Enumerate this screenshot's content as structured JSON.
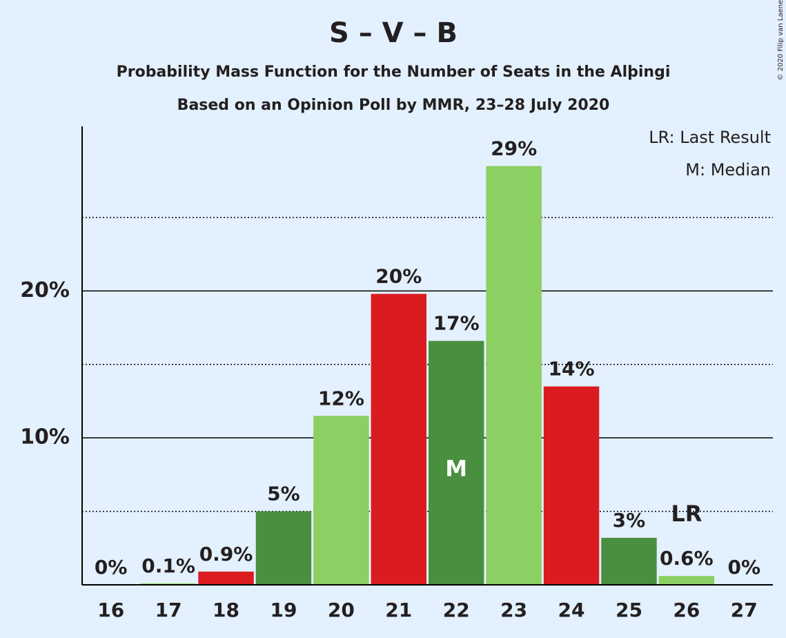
{
  "chart_data": {
    "type": "bar",
    "title": "S – V – B",
    "subtitles": [
      "Probability Mass Function for the Number of Seats in the Alþingi",
      "Based on an Opinion Poll by MMR, 23–28 July 2020"
    ],
    "categories": [
      "16",
      "17",
      "18",
      "19",
      "20",
      "21",
      "22",
      "23",
      "24",
      "25",
      "26",
      "27"
    ],
    "values": [
      0,
      0.1,
      0.9,
      5.0,
      11.5,
      19.8,
      16.6,
      28.5,
      13.5,
      3.2,
      0.6,
      0
    ],
    "value_labels": [
      "0%",
      "0.1%",
      "0.9%",
      "5%",
      "12%",
      "20%",
      "17%",
      "29%",
      "14%",
      "3%",
      "0.6%",
      "0%"
    ],
    "colors": [
      "#4a8f3f",
      "#8ccf63",
      "#da1c21",
      "#4a8f3f",
      "#8ccf63",
      "#da1c21",
      "#4a8f3f",
      "#8ccf63",
      "#da1c21",
      "#4a8f3f",
      "#8ccf63",
      "#da1c21"
    ],
    "ylim": [
      0,
      31.2
    ],
    "yticks": [
      {
        "value": 10,
        "label": "10%"
      },
      {
        "value": 20,
        "label": "20%"
      }
    ],
    "minor_yticks": [
      5,
      15,
      25
    ],
    "grid": true,
    "annotations": [
      {
        "text": "M",
        "category": "22",
        "position": "inside"
      },
      {
        "text": "LR",
        "category": "26",
        "position": "above"
      }
    ],
    "notes": [
      "LR: Last Result",
      "M: Median"
    ],
    "credit": "© 2020 Filip van Laenen"
  }
}
